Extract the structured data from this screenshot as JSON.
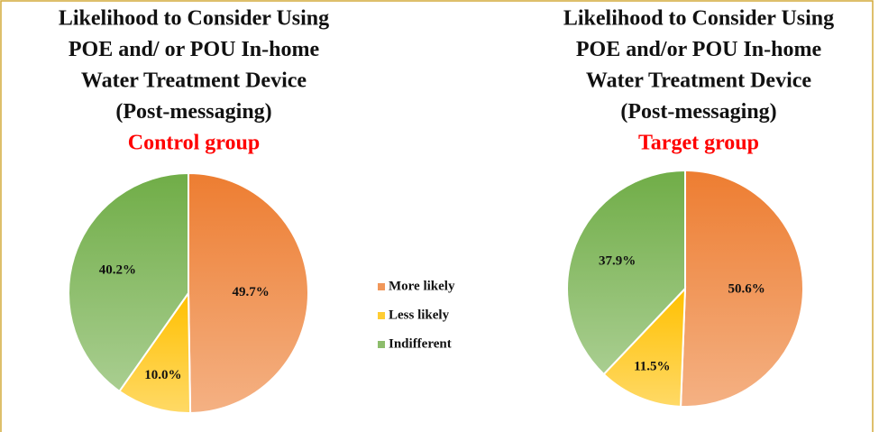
{
  "chart_data": [
    {
      "type": "pie",
      "title": [
        "Likelihood to Consider Using",
        "POE and/ or POU In-home",
        "Water Treatment Device",
        "(Post-messaging)"
      ],
      "subtitle": "Control group",
      "categories": [
        "More likely",
        "Less likely",
        "Indifferent"
      ],
      "values": [
        49.7,
        10.0,
        40.2
      ],
      "value_labels": [
        "49.7%",
        "10.0%",
        "40.2%"
      ],
      "colors": [
        "#ed7d31",
        "#ffc000",
        "#70ad47"
      ]
    },
    {
      "type": "pie",
      "title": [
        "Likelihood to Consider Using",
        "POE and/or POU In-home",
        "Water Treatment Device",
        "(Post-messaging)"
      ],
      "subtitle": "Target group",
      "categories": [
        "More likely",
        "Less likely",
        "Indifferent"
      ],
      "values": [
        50.6,
        11.5,
        37.9
      ],
      "value_labels": [
        "50.6%",
        "11.5%",
        "37.9%"
      ],
      "colors": [
        "#ed7d31",
        "#ffc000",
        "#70ad47"
      ]
    }
  ]
}
